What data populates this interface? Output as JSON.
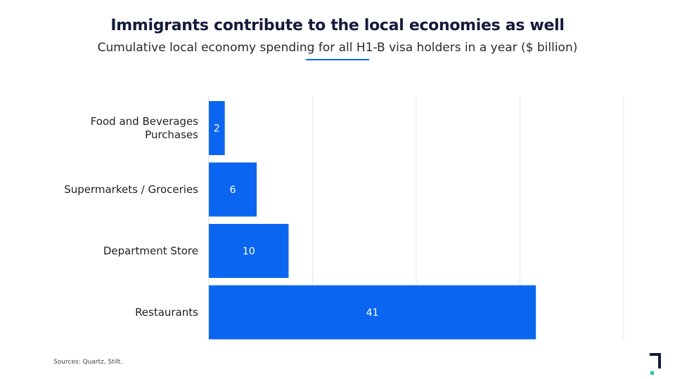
{
  "header": {
    "title": "Immigrants contribute to the local economies as well",
    "subtitle": "Cumulative local economy spending for all H1-B visa holders in a year ($ billion)"
  },
  "footer": {
    "sources": "Sources: Quartz, Stilt."
  },
  "colors": {
    "bar": "#0a66f0",
    "grid": "#e6e6e6",
    "logo_dark": "#141b3c",
    "logo_accent": "#22c4b0"
  },
  "logo": {
    "icon": "brand-logo-icon"
  },
  "chart_data": {
    "type": "bar",
    "orientation": "horizontal",
    "title": "Immigrants contribute to the local economies as well",
    "subtitle": "Cumulative local economy spending for all H1-B visa holders in a year ($ billion)",
    "categories": [
      "Food and Beverages Purchases",
      "Supermarkets / Groceries",
      "Department Store",
      "Restaurants"
    ],
    "category_lines": [
      [
        "Food and Beverages",
        "Purchases"
      ],
      [
        "Supermarkets / Groceries"
      ],
      [
        "Department Store"
      ],
      [
        "Restaurants"
      ]
    ],
    "values": [
      2,
      6,
      10,
      41
    ],
    "xlim": [
      0,
      52
    ],
    "xgrid_values": [
      0,
      13,
      26,
      39,
      52
    ],
    "grid": true,
    "data_labels": true,
    "xlabel": "",
    "ylabel": ""
  }
}
